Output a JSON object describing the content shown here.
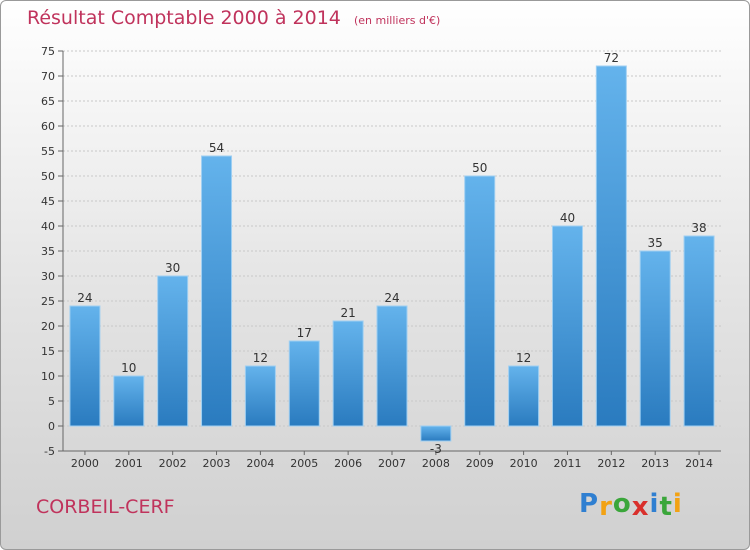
{
  "header": {
    "title": "Résultat Comptable 2000 à 2014",
    "subtitle": "(en milliers d'€)"
  },
  "footer": {
    "town": "CORBEIL-CERF",
    "brand_letters": [
      "P",
      "r",
      "o",
      "x",
      "i",
      "t",
      "i"
    ],
    "brand_colors": [
      "#2f7fd1",
      "#f2a213",
      "#3aa63a",
      "#d9302c",
      "#2f7fd1",
      "#3aa63a",
      "#f2a213"
    ]
  },
  "colors": {
    "bar_light": "#64b3ec",
    "bar_dark": "#2a7bbf",
    "text": "#c0335c"
  },
  "chart_data": {
    "type": "bar",
    "title": "Résultat Comptable 2000 à 2014",
    "subtitle": "(en milliers d'€)",
    "categories": [
      "2000",
      "2001",
      "2002",
      "2003",
      "2004",
      "2005",
      "2006",
      "2007",
      "2008",
      "2009",
      "2010",
      "2011",
      "2012",
      "2013",
      "2014"
    ],
    "values": [
      24,
      10,
      30,
      54,
      12,
      17,
      21,
      24,
      -3,
      50,
      12,
      40,
      72,
      35,
      38
    ],
    "ylim": [
      -5,
      75
    ],
    "yticks": [
      -5,
      0,
      5,
      10,
      15,
      20,
      25,
      30,
      35,
      40,
      45,
      50,
      55,
      60,
      65,
      70,
      75
    ],
    "grid": "horizontal",
    "data_labels": true
  }
}
